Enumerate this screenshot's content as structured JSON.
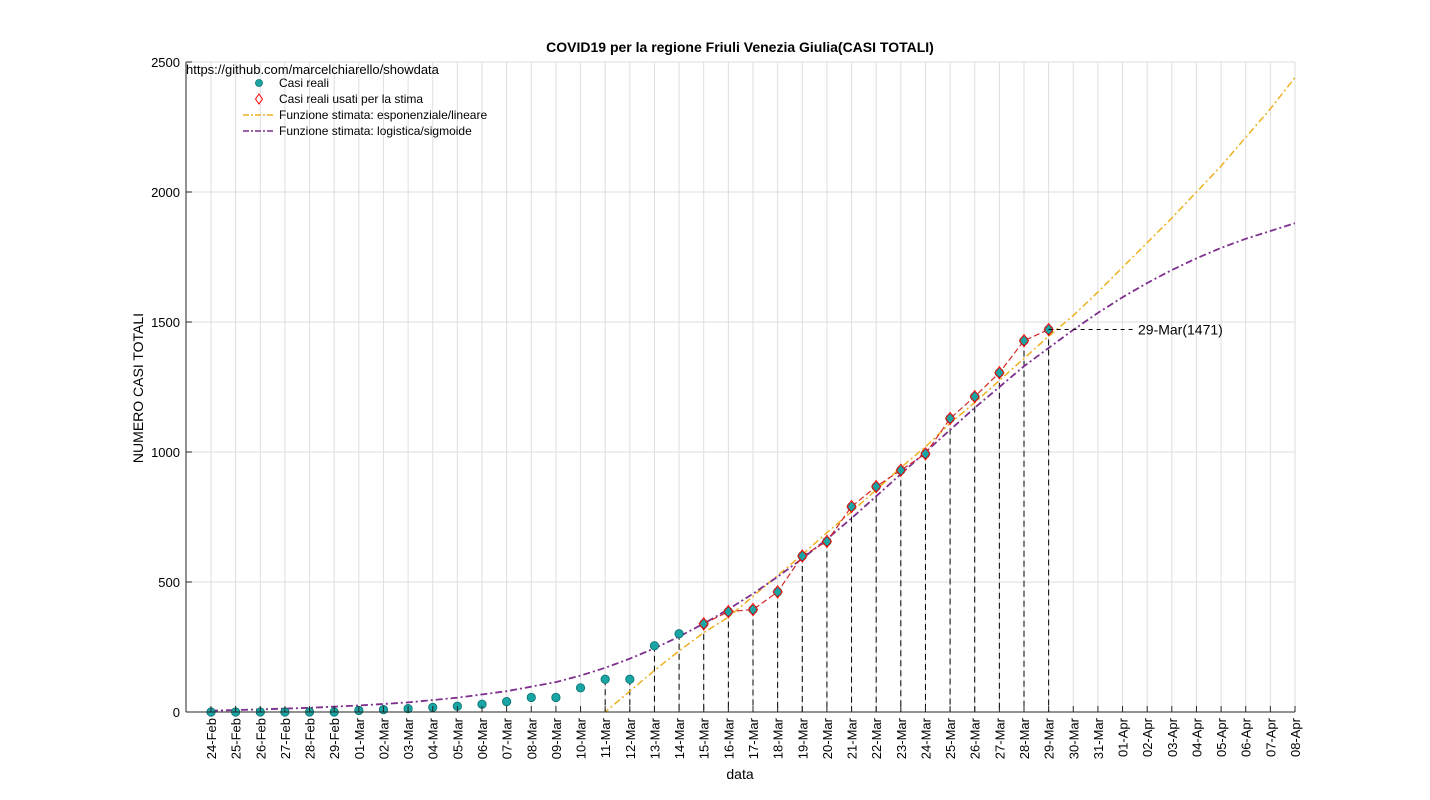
{
  "chart_data": {
    "type": "scatter",
    "title": "COVID19 per la regione Friuli Venezia Giulia(CASI TOTALI)",
    "xlabel": "data",
    "ylabel": "NUMERO CASI TOTALI",
    "ylim": [
      0,
      2500
    ],
    "yticks": [
      0,
      500,
      1000,
      1500,
      2000,
      2500
    ],
    "grid": true,
    "legend_position": "top-left",
    "source_text": "https://github.com/marcelchiarello/showdata",
    "categories": [
      "24-Feb",
      "25-Feb",
      "26-Feb",
      "27-Feb",
      "28-Feb",
      "29-Feb",
      "01-Mar",
      "02-Mar",
      "03-Mar",
      "04-Mar",
      "05-Mar",
      "06-Mar",
      "07-Mar",
      "08-Mar",
      "09-Mar",
      "10-Mar",
      "11-Mar",
      "12-Mar",
      "13-Mar",
      "14-Mar",
      "15-Mar",
      "16-Mar",
      "17-Mar",
      "18-Mar",
      "19-Mar",
      "20-Mar",
      "21-Mar",
      "22-Mar",
      "23-Mar",
      "24-Mar",
      "25-Mar",
      "26-Mar",
      "27-Mar",
      "28-Mar",
      "29-Mar",
      "30-Mar",
      "31-Mar",
      "01-Apr",
      "02-Apr",
      "03-Apr",
      "04-Apr",
      "05-Apr",
      "06-Apr",
      "07-Apr",
      "08-Apr"
    ],
    "series": [
      {
        "name": "Casi reali",
        "color": "#1aa5a5",
        "x_index": [
          0,
          1,
          2,
          3,
          4,
          5,
          6,
          7,
          8,
          9,
          10,
          11,
          12,
          13,
          14,
          15,
          16,
          17,
          18,
          19,
          20,
          21,
          22,
          23,
          24,
          25,
          26,
          27,
          28,
          29,
          30,
          31,
          32,
          33,
          34
        ],
        "values": [
          0,
          0,
          0,
          0,
          0,
          0,
          6,
          9,
          13,
          18,
          22,
          30,
          40,
          56,
          56,
          93,
          126,
          126,
          255,
          301,
          339,
          386,
          394,
          462,
          600,
          656,
          790,
          867,
          930,
          993,
          1129,
          1213,
          1305,
          1428,
          1471
        ]
      },
      {
        "name": "Casi reali usati per la stima",
        "color": "#ff0000",
        "x_index": [
          20,
          21,
          22,
          23,
          24,
          25,
          26,
          27,
          28,
          29,
          30,
          31,
          32,
          33,
          34
        ],
        "values": [
          339,
          386,
          394,
          462,
          600,
          656,
          790,
          867,
          930,
          993,
          1129,
          1213,
          1305,
          1428,
          1471
        ]
      },
      {
        "name": "Funzione stimata: esponenziale/lineare",
        "color": "#edb120",
        "x_index": [
          15.5,
          16,
          17,
          18,
          19,
          20,
          21,
          22,
          23,
          24,
          25,
          26,
          27,
          28,
          29,
          30,
          31,
          32,
          33,
          34,
          35,
          36,
          37,
          38,
          39,
          40,
          41,
          42,
          43,
          44,
          45,
          46
        ],
        "values": [
          -50,
          0,
          80,
          160,
          235,
          305,
          365,
          445,
          525,
          605,
          690,
          770,
          855,
          940,
          1020,
          1110,
          1190,
          1275,
          1360,
          1445,
          1525,
          1615,
          1710,
          1805,
          1900,
          2000,
          2100,
          2210,
          2320,
          2440,
          2560,
          2690
        ]
      },
      {
        "name": "Funzione stimata: logistica/sigmoide",
        "color": "#7e2f8e",
        "x_index": [
          0,
          2,
          4,
          6,
          8,
          10,
          12,
          14,
          15,
          16,
          17,
          18,
          19,
          20,
          21,
          22,
          23,
          24,
          25,
          26,
          27,
          28,
          29,
          30,
          31,
          32,
          33,
          34,
          35,
          36,
          37,
          38,
          39,
          40,
          41,
          42,
          43,
          44
        ],
        "values": [
          5,
          10,
          16,
          25,
          37,
          55,
          80,
          115,
          140,
          170,
          205,
          245,
          290,
          340,
          395,
          455,
          520,
          590,
          665,
          745,
          830,
          915,
          1000,
          1085,
          1170,
          1250,
          1330,
          1400,
          1470,
          1535,
          1595,
          1650,
          1700,
          1745,
          1785,
          1820,
          1850,
          1880
        ]
      }
    ],
    "annotation": {
      "label": "29-Mar(1471)",
      "x_index": 34,
      "value": 1471
    }
  }
}
